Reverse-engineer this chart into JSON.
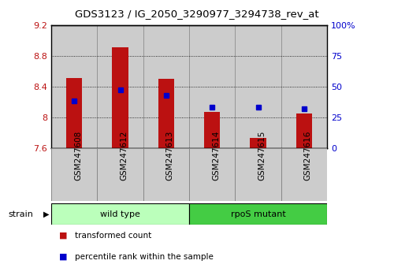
{
  "title": "GDS3123 / IG_2050_3290977_3294738_rev_at",
  "categories": [
    "GSM247608",
    "GSM247612",
    "GSM247613",
    "GSM247614",
    "GSM247615",
    "GSM247616"
  ],
  "bar_values": [
    8.51,
    8.91,
    8.5,
    8.07,
    7.73,
    8.05
  ],
  "bar_color": "#bb1111",
  "bar_bottom": 7.6,
  "percentile_values": [
    38,
    47,
    43,
    33,
    33,
    32
  ],
  "percentile_color": "#0000cc",
  "left_ylim": [
    7.6,
    9.2
  ],
  "left_yticks": [
    7.6,
    8.0,
    8.4,
    8.8,
    9.2
  ],
  "left_ytick_labels": [
    "7.6",
    "8",
    "8.4",
    "8.8",
    "9.2"
  ],
  "right_ylim": [
    0,
    100
  ],
  "right_yticks": [
    0,
    25,
    50,
    75,
    100
  ],
  "right_ytick_labels": [
    "0",
    "25",
    "50",
    "75",
    "100%"
  ],
  "group_labels": [
    "wild type",
    "rpoS mutant"
  ],
  "group_ranges": [
    [
      0,
      3
    ],
    [
      3,
      6
    ]
  ],
  "group_colors": [
    "#bbffbb",
    "#44cc44"
  ],
  "strain_label": "strain",
  "legend_items": [
    {
      "label": "transformed count",
      "color": "#bb1111"
    },
    {
      "label": "percentile rank within the sample",
      "color": "#0000cc"
    }
  ],
  "bar_width": 0.35,
  "figsize": [
    5.0,
    3.54
  ],
  "dpi": 100,
  "col_bg_color": "#cccccc",
  "col_border_color": "#888888"
}
